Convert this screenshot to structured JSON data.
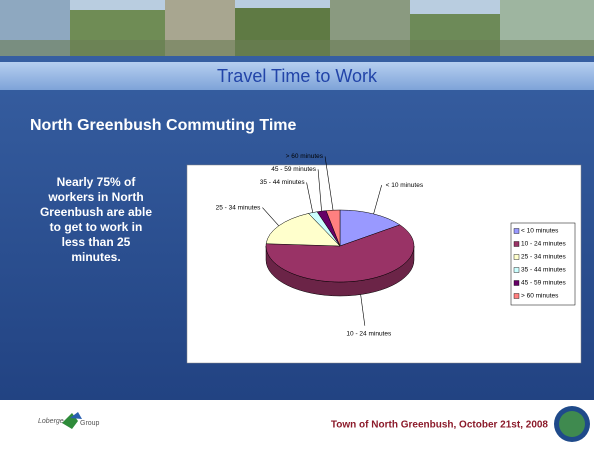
{
  "slide": {
    "title": "Travel Time to Work",
    "heading": "North Greenbush Commuting Time",
    "note_lines": [
      "Nearly 75% of",
      "workers in North",
      "Greenbush are able",
      "to get to work in",
      "less than 25",
      "minutes."
    ],
    "footer": "Town of North Greenbush, October 21st, 2008",
    "logo": [
      "Loberge",
      "Group"
    ]
  },
  "chart_data": {
    "type": "pie",
    "categories": [
      "< 10 minutes",
      "10 - 24 minutes",
      "25 - 34 minutes",
      "35 - 44 minutes",
      "45 - 59 minutes",
      "> 60 minutes"
    ],
    "values": [
      15,
      61,
      17,
      2,
      2,
      3
    ],
    "colors": [
      "#9999ff",
      "#993366",
      "#ffffcc",
      "#ccffff",
      "#660066",
      "#ff8080"
    ],
    "legend": "right"
  }
}
